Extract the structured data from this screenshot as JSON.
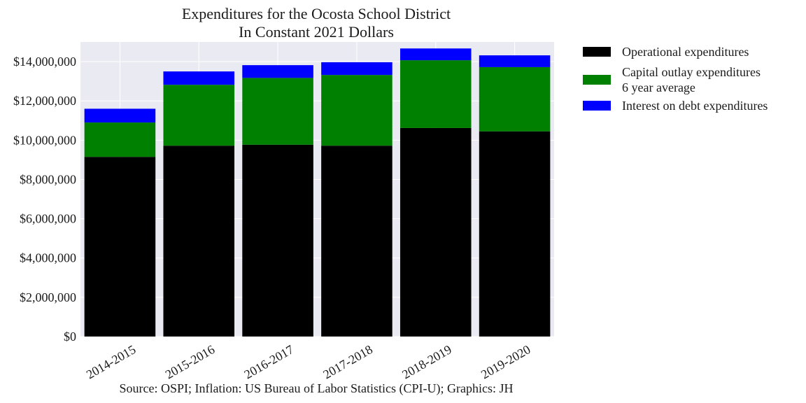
{
  "chart_data": {
    "type": "bar",
    "stacked": true,
    "title": [
      "Expenditures for the Ocosta School District",
      "In Constant 2021 Dollars"
    ],
    "xlabel": "",
    "ylabel": "",
    "categories": [
      "2014-2015",
      "2015-2016",
      "2016-2017",
      "2017-2018",
      "2018-2019",
      "2019-2020"
    ],
    "series": [
      {
        "name": "Operational expenditures",
        "color": "#000000",
        "values": [
          9150000,
          9720000,
          9770000,
          9720000,
          10620000,
          10450000
        ]
      },
      {
        "name": "Capital outlay expenditures\n6 year average",
        "color": "#008000",
        "values": [
          1750000,
          3100000,
          3400000,
          3600000,
          3450000,
          3270000
        ]
      },
      {
        "name": "Interest on debt expenditures",
        "color": "#0000ff",
        "values": [
          700000,
          680000,
          650000,
          650000,
          600000,
          600000
        ]
      }
    ],
    "ylim": [
      0,
      15000000
    ],
    "yticks": [
      0,
      2000000,
      4000000,
      6000000,
      8000000,
      10000000,
      12000000,
      14000000
    ],
    "ytick_labels": [
      "$0",
      "$2,000,000",
      "$4,000,000",
      "$6,000,000",
      "$8,000,000",
      "$10,000,000",
      "$12,000,000",
      "$14,000,000"
    ],
    "grid": true,
    "legend_position": "outside-top-right",
    "background": "#eaeaf2",
    "annotation": "Source: OSPI; Inflation: US Bureau of Labor Statistics (CPI-U); Graphics: JH"
  }
}
